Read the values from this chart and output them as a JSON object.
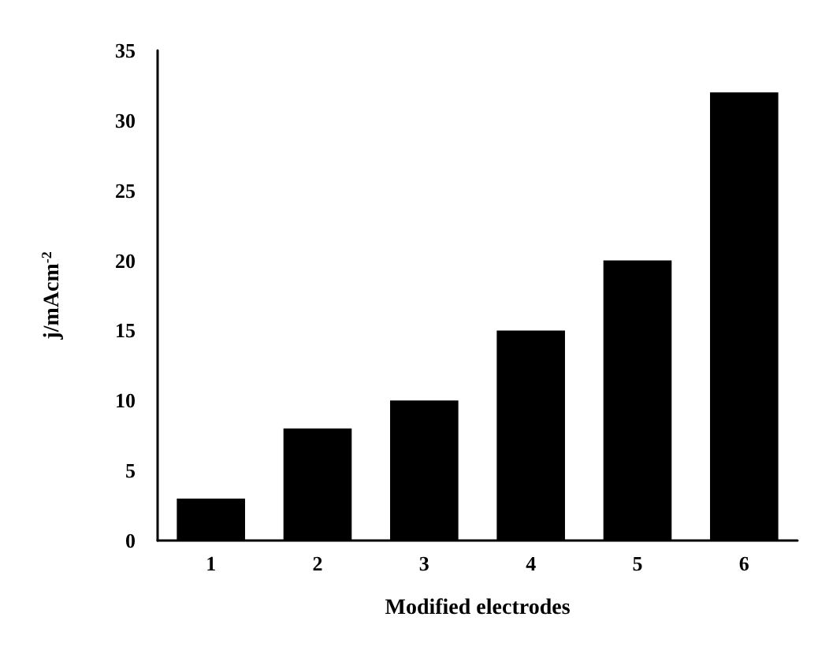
{
  "chart_data": {
    "type": "bar",
    "xlabel": "Modified electrodes",
    "ylabel": "j/mAcm$^{-2}$",
    "categories": [
      "1",
      "2",
      "3",
      "4",
      "5",
      "6"
    ],
    "values": [
      3,
      8,
      10,
      15,
      20,
      32
    ],
    "color": "#000000",
    "ylim": [
      0,
      35
    ],
    "yticks": [
      0,
      5,
      10,
      15,
      20,
      25,
      30,
      35
    ],
    "grid": false
  }
}
